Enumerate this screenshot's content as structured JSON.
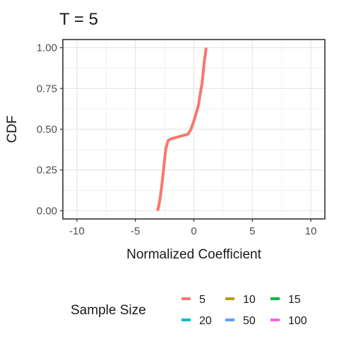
{
  "chart_data": {
    "type": "line",
    "title": "T = 5",
    "xlabel": "Normalized Coefficient",
    "ylabel": "CDF",
    "xlim": [
      -11.2,
      11.2
    ],
    "ylim": [
      -0.05,
      1.05
    ],
    "x_ticks": [
      -10,
      -5,
      0,
      5,
      10
    ],
    "x_tick_labels": [
      "-10",
      "-5",
      "0",
      "5",
      "10"
    ],
    "y_ticks": [
      0,
      0.25,
      0.5,
      0.75,
      1
    ],
    "y_tick_labels": [
      "0.00",
      "0.25",
      "0.50",
      "0.75",
      "1.00"
    ],
    "grid": true,
    "legend": {
      "title": "Sample Size",
      "position": "bottom",
      "entries": [
        {
          "label": "5",
          "color": "#F8766D"
        },
        {
          "label": "10",
          "color": "#B79F00"
        },
        {
          "label": "15",
          "color": "#00BA38"
        },
        {
          "label": "20",
          "color": "#00BFC4"
        },
        {
          "label": "50",
          "color": "#619CFF"
        },
        {
          "label": "100",
          "color": "#F564E3"
        }
      ]
    },
    "series": [
      {
        "name": "5",
        "color": "#F8766D",
        "x": [
          -3.1,
          -3.0,
          -2.9,
          -2.75,
          -2.55,
          -2.4,
          -2.2,
          -2.0,
          -1.5,
          -1.0,
          -0.5,
          -0.25,
          0.0,
          0.2,
          0.4,
          0.55,
          0.7,
          0.8,
          0.9,
          1.0,
          1.05
        ],
        "y": [
          0.0,
          0.03,
          0.07,
          0.15,
          0.28,
          0.38,
          0.43,
          0.44,
          0.45,
          0.46,
          0.47,
          0.5,
          0.55,
          0.6,
          0.65,
          0.72,
          0.78,
          0.85,
          0.92,
          0.97,
          1.0
        ]
      }
    ]
  }
}
